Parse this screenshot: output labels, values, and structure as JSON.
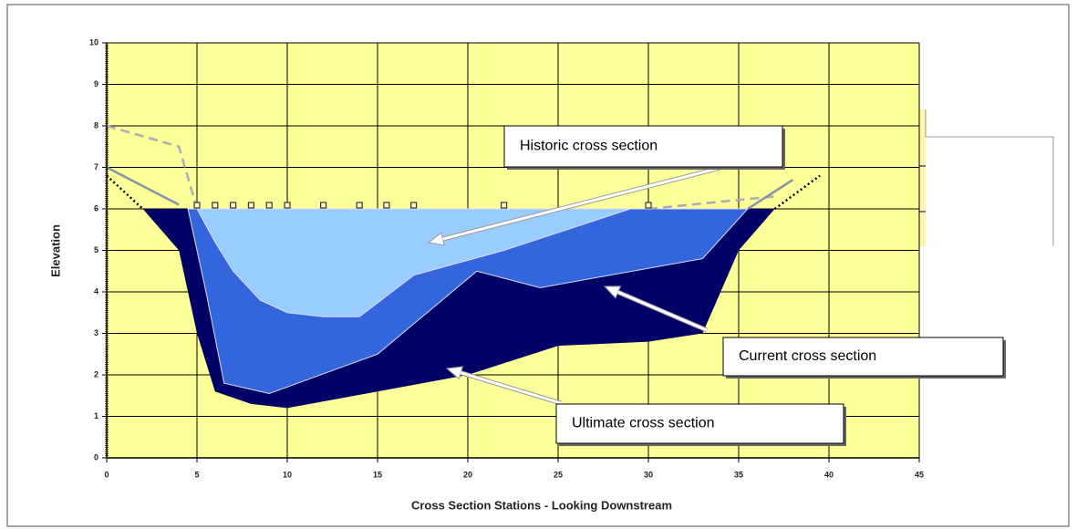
{
  "chart_data": {
    "type": "area",
    "x_label": "Cross Section Stations - Looking Downstream",
    "y_label": "Elevation",
    "xlim": [
      0,
      45
    ],
    "xticks": [
      0,
      5,
      10,
      15,
      20,
      25,
      30,
      35,
      40,
      45
    ],
    "ylim": [
      0,
      10
    ],
    "yticks": [
      0,
      1,
      2,
      3,
      4,
      5,
      6,
      7,
      8,
      9,
      10
    ],
    "grid": true,
    "background": "#ffff99",
    "series": [
      {
        "kind": "area",
        "color": "#000066",
        "x": [
          2,
          4,
          5,
          6,
          8,
          10,
          15,
          20,
          25,
          30,
          33,
          35,
          37
        ],
        "values": [
          6,
          5,
          3,
          1.6,
          1.3,
          1.2,
          1.6,
          2,
          2.7,
          2.8,
          3,
          5,
          6
        ]
      },
      {
        "kind": "area",
        "color": "#3366dd",
        "x": [
          4.5,
          5.5,
          6.5,
          9,
          15,
          20.5,
          24,
          33,
          35.5
        ],
        "values": [
          6,
          4,
          1.8,
          1.55,
          2.5,
          4.5,
          4.1,
          4.8,
          6
        ]
      },
      {
        "kind": "area",
        "color": "#99ccff",
        "x": [
          5,
          6,
          7,
          8.5,
          10,
          12,
          14,
          17,
          22,
          29
        ],
        "values": [
          6,
          5.2,
          4.5,
          3.8,
          3.5,
          3.4,
          3.4,
          4.4,
          5,
          6
        ]
      },
      {
        "kind": "line",
        "color": "#aab",
        "dash": "10,6",
        "x": [
          0,
          4,
          5,
          null,
          30,
          37
        ],
        "values": [
          8,
          7.5,
          6,
          null,
          6,
          6.3
        ]
      },
      {
        "kind": "line",
        "color": "#8890a8",
        "dash": "",
        "x": [
          0,
          4,
          null,
          35.5,
          38
        ],
        "values": [
          7,
          6.1,
          null,
          6,
          6.7
        ]
      },
      {
        "kind": "line",
        "color": "#000",
        "dash": "2,3",
        "x": [
          0,
          2,
          null,
          37,
          39.5
        ],
        "values": [
          6.8,
          6,
          null,
          6,
          6.8
        ]
      },
      {
        "kind": "markers",
        "color": "#333",
        "x": [
          5,
          6,
          7,
          8,
          9,
          10,
          12,
          14,
          15.5,
          17,
          22,
          30
        ],
        "values": [
          6,
          6,
          6,
          6,
          6,
          6,
          6,
          6,
          6,
          6,
          6,
          6
        ]
      }
    ],
    "annotations": [
      "Historic cross section",
      "Current cross section",
      "Ultimate cross section"
    ]
  }
}
